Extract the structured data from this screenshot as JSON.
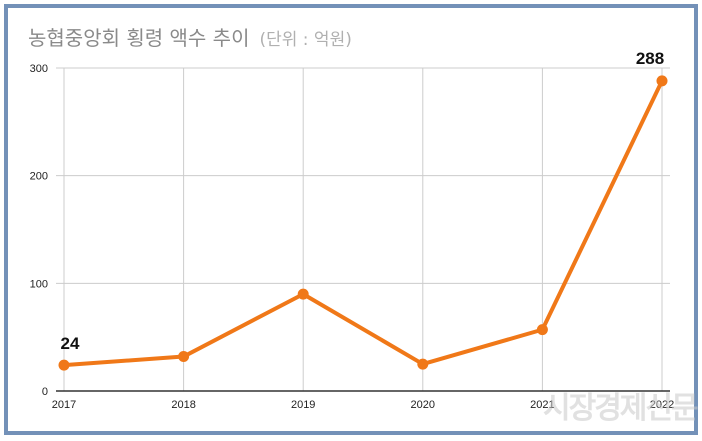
{
  "title": {
    "main": "농협중앙회 횡령 액수 추이",
    "unit": "(단위 : 억원)"
  },
  "watermark": "시장경제신문",
  "colors": {
    "line": "#f07818",
    "frame": "#7391b8",
    "grid": "#cccccc",
    "axis": "#333333",
    "title": "#8a8a8a"
  },
  "chart_data": {
    "type": "line",
    "title": "농협중앙회 횡령 액수 추이 (단위 : 억원)",
    "xlabel": "",
    "ylabel": "",
    "categories": [
      "2017",
      "2018",
      "2019",
      "2020",
      "2021",
      "2022"
    ],
    "series": [
      {
        "name": "횡령 액수",
        "values": [
          24,
          32,
          90,
          25,
          57,
          288
        ]
      }
    ],
    "ylim": [
      0,
      300
    ],
    "yticks": [
      0,
      100,
      200,
      300
    ],
    "grid": true,
    "legend": null,
    "annotations": [
      {
        "x": "2017",
        "label": "24"
      },
      {
        "x": "2022",
        "label": "288"
      }
    ]
  }
}
